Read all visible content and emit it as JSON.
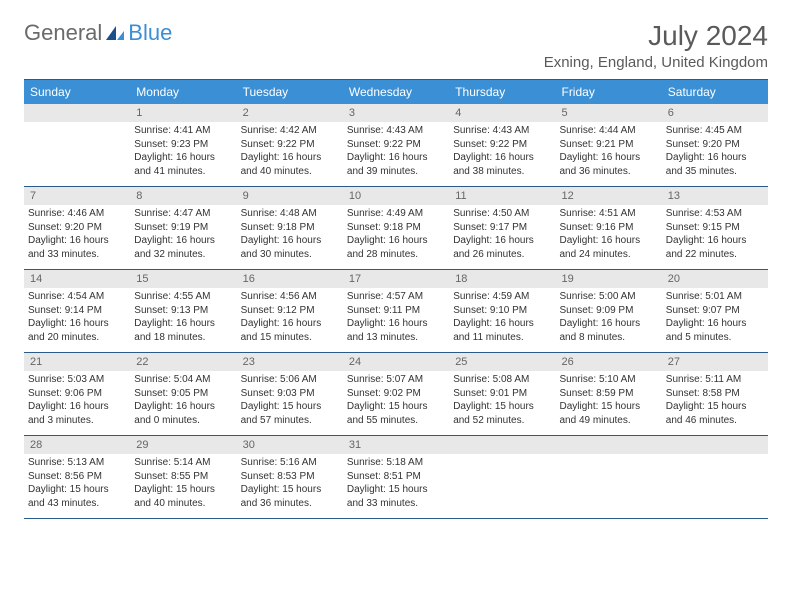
{
  "logo": {
    "part1": "General",
    "part2": "Blue"
  },
  "title": "July 2024",
  "location": "Exning, England, United Kingdom",
  "dayHeaders": [
    "Sunday",
    "Monday",
    "Tuesday",
    "Wednesday",
    "Thursday",
    "Friday",
    "Saturday"
  ],
  "colors": {
    "headerBg": "#3b8fd4",
    "headerText": "#ffffff",
    "dayNumBg": "#e8e8e8",
    "dayNumText": "#666666",
    "bodyText": "#333333",
    "borderColor": "#2a5a8a"
  },
  "fonts": {
    "title_pt": 28,
    "location_pt": 15,
    "header_pt": 12,
    "daynum_pt": 11,
    "detail_pt": 10
  },
  "weeks": [
    [
      {
        "num": "",
        "sunrise": "",
        "sunset": "",
        "daylight1": "",
        "daylight2": ""
      },
      {
        "num": "1",
        "sunrise": "Sunrise: 4:41 AM",
        "sunset": "Sunset: 9:23 PM",
        "daylight1": "Daylight: 16 hours",
        "daylight2": "and 41 minutes."
      },
      {
        "num": "2",
        "sunrise": "Sunrise: 4:42 AM",
        "sunset": "Sunset: 9:22 PM",
        "daylight1": "Daylight: 16 hours",
        "daylight2": "and 40 minutes."
      },
      {
        "num": "3",
        "sunrise": "Sunrise: 4:43 AM",
        "sunset": "Sunset: 9:22 PM",
        "daylight1": "Daylight: 16 hours",
        "daylight2": "and 39 minutes."
      },
      {
        "num": "4",
        "sunrise": "Sunrise: 4:43 AM",
        "sunset": "Sunset: 9:22 PM",
        "daylight1": "Daylight: 16 hours",
        "daylight2": "and 38 minutes."
      },
      {
        "num": "5",
        "sunrise": "Sunrise: 4:44 AM",
        "sunset": "Sunset: 9:21 PM",
        "daylight1": "Daylight: 16 hours",
        "daylight2": "and 36 minutes."
      },
      {
        "num": "6",
        "sunrise": "Sunrise: 4:45 AM",
        "sunset": "Sunset: 9:20 PM",
        "daylight1": "Daylight: 16 hours",
        "daylight2": "and 35 minutes."
      }
    ],
    [
      {
        "num": "7",
        "sunrise": "Sunrise: 4:46 AM",
        "sunset": "Sunset: 9:20 PM",
        "daylight1": "Daylight: 16 hours",
        "daylight2": "and 33 minutes."
      },
      {
        "num": "8",
        "sunrise": "Sunrise: 4:47 AM",
        "sunset": "Sunset: 9:19 PM",
        "daylight1": "Daylight: 16 hours",
        "daylight2": "and 32 minutes."
      },
      {
        "num": "9",
        "sunrise": "Sunrise: 4:48 AM",
        "sunset": "Sunset: 9:18 PM",
        "daylight1": "Daylight: 16 hours",
        "daylight2": "and 30 minutes."
      },
      {
        "num": "10",
        "sunrise": "Sunrise: 4:49 AM",
        "sunset": "Sunset: 9:18 PM",
        "daylight1": "Daylight: 16 hours",
        "daylight2": "and 28 minutes."
      },
      {
        "num": "11",
        "sunrise": "Sunrise: 4:50 AM",
        "sunset": "Sunset: 9:17 PM",
        "daylight1": "Daylight: 16 hours",
        "daylight2": "and 26 minutes."
      },
      {
        "num": "12",
        "sunrise": "Sunrise: 4:51 AM",
        "sunset": "Sunset: 9:16 PM",
        "daylight1": "Daylight: 16 hours",
        "daylight2": "and 24 minutes."
      },
      {
        "num": "13",
        "sunrise": "Sunrise: 4:53 AM",
        "sunset": "Sunset: 9:15 PM",
        "daylight1": "Daylight: 16 hours",
        "daylight2": "and 22 minutes."
      }
    ],
    [
      {
        "num": "14",
        "sunrise": "Sunrise: 4:54 AM",
        "sunset": "Sunset: 9:14 PM",
        "daylight1": "Daylight: 16 hours",
        "daylight2": "and 20 minutes."
      },
      {
        "num": "15",
        "sunrise": "Sunrise: 4:55 AM",
        "sunset": "Sunset: 9:13 PM",
        "daylight1": "Daylight: 16 hours",
        "daylight2": "and 18 minutes."
      },
      {
        "num": "16",
        "sunrise": "Sunrise: 4:56 AM",
        "sunset": "Sunset: 9:12 PM",
        "daylight1": "Daylight: 16 hours",
        "daylight2": "and 15 minutes."
      },
      {
        "num": "17",
        "sunrise": "Sunrise: 4:57 AM",
        "sunset": "Sunset: 9:11 PM",
        "daylight1": "Daylight: 16 hours",
        "daylight2": "and 13 minutes."
      },
      {
        "num": "18",
        "sunrise": "Sunrise: 4:59 AM",
        "sunset": "Sunset: 9:10 PM",
        "daylight1": "Daylight: 16 hours",
        "daylight2": "and 11 minutes."
      },
      {
        "num": "19",
        "sunrise": "Sunrise: 5:00 AM",
        "sunset": "Sunset: 9:09 PM",
        "daylight1": "Daylight: 16 hours",
        "daylight2": "and 8 minutes."
      },
      {
        "num": "20",
        "sunrise": "Sunrise: 5:01 AM",
        "sunset": "Sunset: 9:07 PM",
        "daylight1": "Daylight: 16 hours",
        "daylight2": "and 5 minutes."
      }
    ],
    [
      {
        "num": "21",
        "sunrise": "Sunrise: 5:03 AM",
        "sunset": "Sunset: 9:06 PM",
        "daylight1": "Daylight: 16 hours",
        "daylight2": "and 3 minutes."
      },
      {
        "num": "22",
        "sunrise": "Sunrise: 5:04 AM",
        "sunset": "Sunset: 9:05 PM",
        "daylight1": "Daylight: 16 hours",
        "daylight2": "and 0 minutes."
      },
      {
        "num": "23",
        "sunrise": "Sunrise: 5:06 AM",
        "sunset": "Sunset: 9:03 PM",
        "daylight1": "Daylight: 15 hours",
        "daylight2": "and 57 minutes."
      },
      {
        "num": "24",
        "sunrise": "Sunrise: 5:07 AM",
        "sunset": "Sunset: 9:02 PM",
        "daylight1": "Daylight: 15 hours",
        "daylight2": "and 55 minutes."
      },
      {
        "num": "25",
        "sunrise": "Sunrise: 5:08 AM",
        "sunset": "Sunset: 9:01 PM",
        "daylight1": "Daylight: 15 hours",
        "daylight2": "and 52 minutes."
      },
      {
        "num": "26",
        "sunrise": "Sunrise: 5:10 AM",
        "sunset": "Sunset: 8:59 PM",
        "daylight1": "Daylight: 15 hours",
        "daylight2": "and 49 minutes."
      },
      {
        "num": "27",
        "sunrise": "Sunrise: 5:11 AM",
        "sunset": "Sunset: 8:58 PM",
        "daylight1": "Daylight: 15 hours",
        "daylight2": "and 46 minutes."
      }
    ],
    [
      {
        "num": "28",
        "sunrise": "Sunrise: 5:13 AM",
        "sunset": "Sunset: 8:56 PM",
        "daylight1": "Daylight: 15 hours",
        "daylight2": "and 43 minutes."
      },
      {
        "num": "29",
        "sunrise": "Sunrise: 5:14 AM",
        "sunset": "Sunset: 8:55 PM",
        "daylight1": "Daylight: 15 hours",
        "daylight2": "and 40 minutes."
      },
      {
        "num": "30",
        "sunrise": "Sunrise: 5:16 AM",
        "sunset": "Sunset: 8:53 PM",
        "daylight1": "Daylight: 15 hours",
        "daylight2": "and 36 minutes."
      },
      {
        "num": "31",
        "sunrise": "Sunrise: 5:18 AM",
        "sunset": "Sunset: 8:51 PM",
        "daylight1": "Daylight: 15 hours",
        "daylight2": "and 33 minutes."
      },
      {
        "num": "",
        "sunrise": "",
        "sunset": "",
        "daylight1": "",
        "daylight2": ""
      },
      {
        "num": "",
        "sunrise": "",
        "sunset": "",
        "daylight1": "",
        "daylight2": ""
      },
      {
        "num": "",
        "sunrise": "",
        "sunset": "",
        "daylight1": "",
        "daylight2": ""
      }
    ]
  ]
}
